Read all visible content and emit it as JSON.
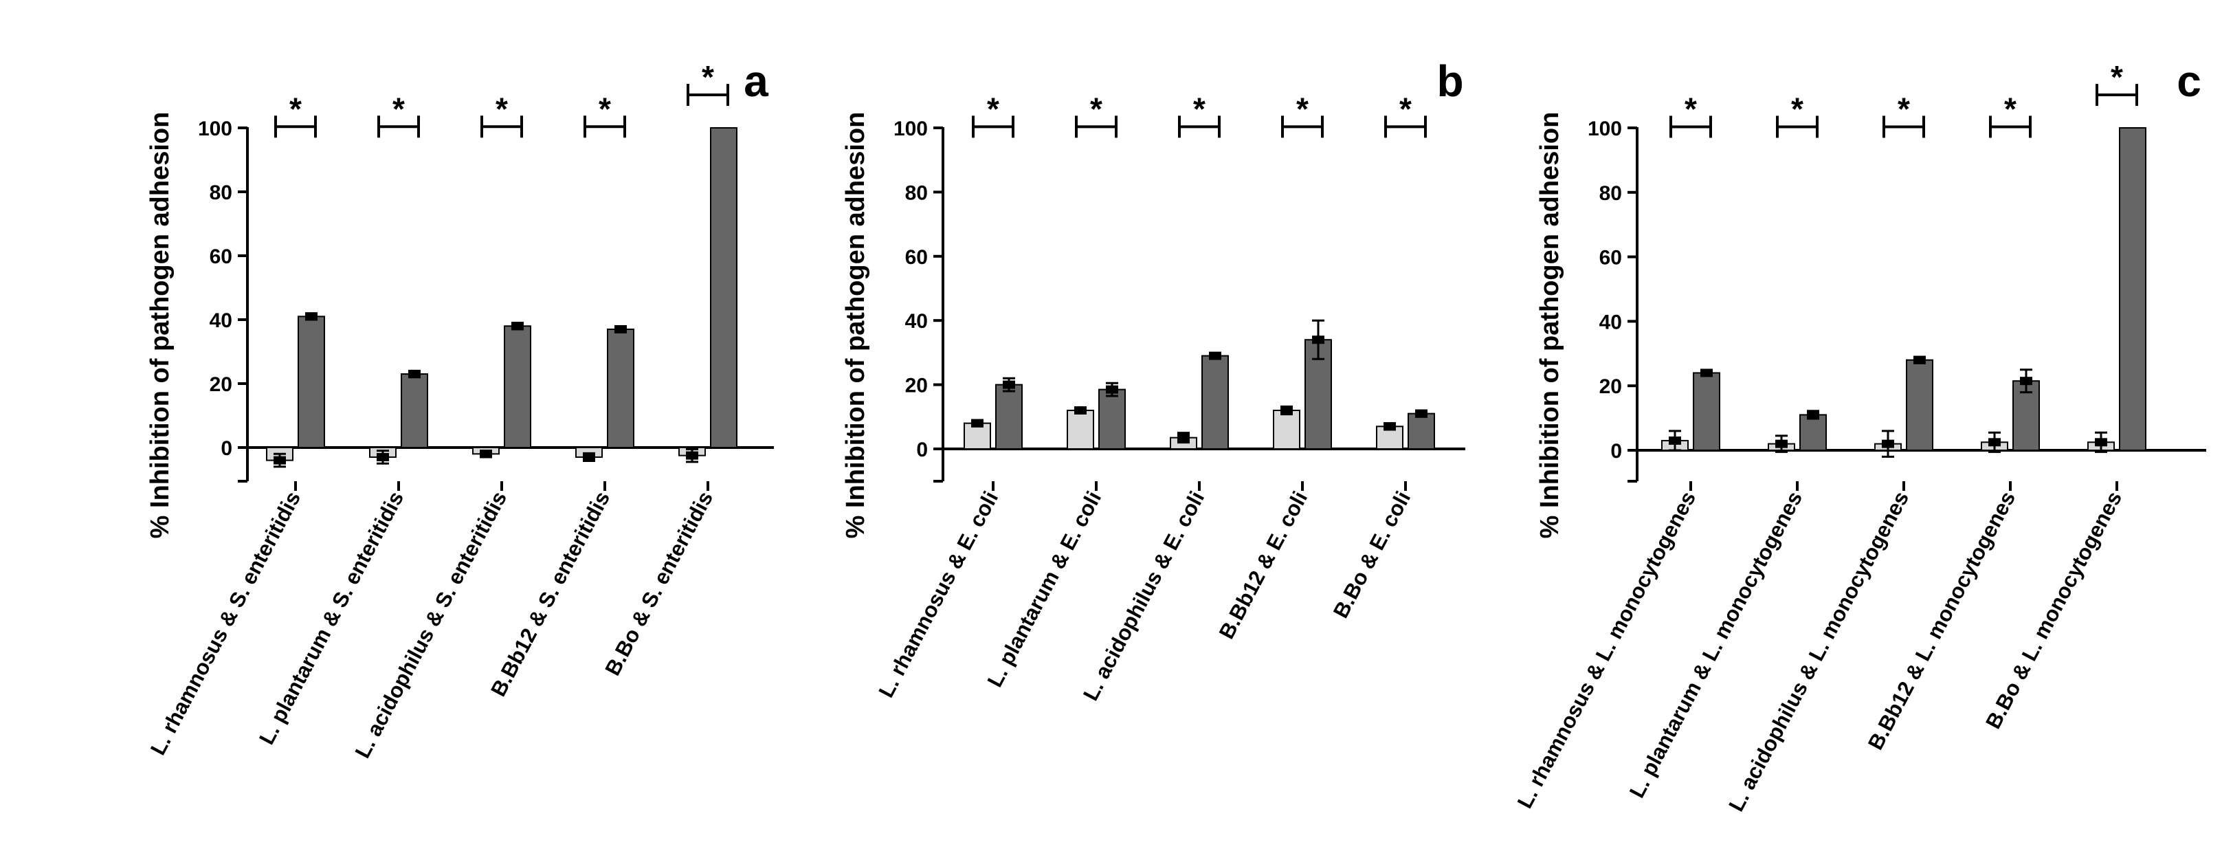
{
  "colors": {
    "light_bar": "#d9d9d9",
    "dark_bar": "#666666",
    "axis": "#000000"
  },
  "chart_data": [
    {
      "type": "bar",
      "panel": "a",
      "ylabel": "% Inhibition of pathogen adhesion",
      "ylim": [
        -10,
        100
      ],
      "yticks": [
        "0",
        "20",
        "40",
        "60",
        "80",
        "100"
      ],
      "categories": [
        "L. rhamnosus & S. enteritidis",
        "L. plantarum & S. enteritidis",
        "L. acidophilus & S. enteritidis",
        "B.Bb12 & S. enteritidis",
        "B.Bo & S. enteritidis"
      ],
      "series": [
        {
          "name": "light",
          "values": [
            -4,
            -3,
            -2,
            -3,
            -2.5
          ],
          "errors": [
            2,
            2,
            1,
            1.2,
            2
          ]
        },
        {
          "name": "dark",
          "values": [
            41,
            23,
            38,
            37,
            100
          ],
          "errors": [
            1,
            1,
            1,
            0.8,
            0
          ]
        }
      ],
      "significance": [
        "*",
        "*",
        "*",
        "*",
        "*"
      ]
    },
    {
      "type": "bar",
      "panel": "b",
      "ylabel": "% Inhibition of pathogen adhesion",
      "ylim": [
        -10,
        100
      ],
      "yticks": [
        "0",
        "20",
        "40",
        "60",
        "80",
        "100"
      ],
      "categories": [
        "L. rhamnosus & E. coli",
        "L. plantarum & E. coli",
        "L. acidophilus & E. coli",
        "B.Bb12 & E. coli",
        "B.Bo & E. coli"
      ],
      "series": [
        {
          "name": "light",
          "values": [
            8,
            12,
            3.5,
            12,
            7
          ],
          "errors": [
            1,
            0.7,
            1.5,
            1.2,
            1
          ]
        },
        {
          "name": "dark",
          "values": [
            20,
            18.5,
            29,
            34,
            11
          ],
          "errors": [
            2,
            2,
            0.7,
            6,
            1
          ]
        }
      ],
      "significance": [
        "*",
        "*",
        "*",
        "*",
        "*"
      ]
    },
    {
      "type": "bar",
      "panel": "c",
      "ylabel": "% Inhibition of pathogen adhesion",
      "ylim": [
        -10,
        100
      ],
      "yticks": [
        "0",
        "20",
        "40",
        "60",
        "80",
        "100"
      ],
      "categories": [
        "L. rhamnosus & L. monocytogenes",
        "L. plantarum & L. monocytogenes",
        "L. acidophilus & L. monocytogenes",
        "B.Bb12 & L. monocytogenes",
        "B.Bo & L. monocytogenes"
      ],
      "series": [
        {
          "name": "light",
          "values": [
            3,
            2,
            2,
            2.5,
            2.5
          ],
          "errors": [
            3,
            2.5,
            4,
            3,
            3
          ]
        },
        {
          "name": "dark",
          "values": [
            24,
            11,
            28,
            21.5,
            100
          ],
          "errors": [
            0.5,
            1.2,
            1,
            3.5,
            0
          ]
        }
      ],
      "significance": [
        "*",
        "*",
        "*",
        "*",
        "*"
      ]
    }
  ]
}
